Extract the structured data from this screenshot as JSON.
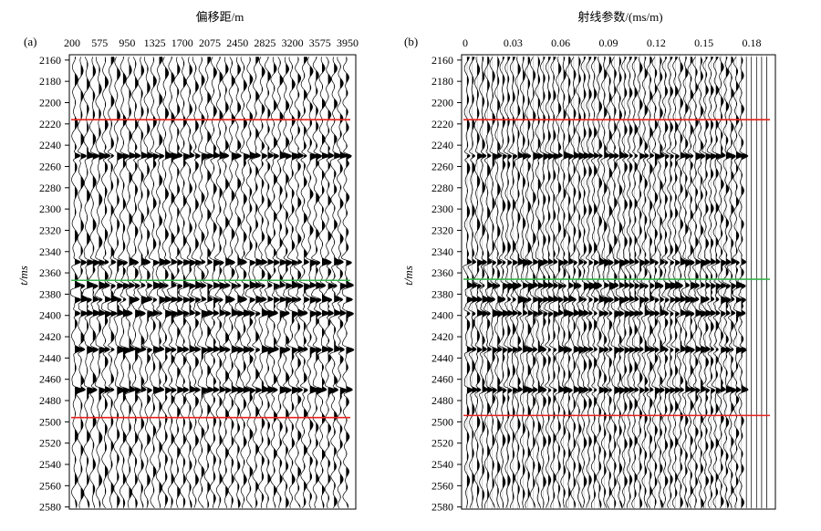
{
  "figure": {
    "panels": [
      {
        "id": "a",
        "label": "(a)",
        "top_axis_title": "偏移距/m",
        "y_axis_title": "t/ms"
      },
      {
        "id": "b",
        "label": "(b)",
        "top_axis_title": "射线参数/(ms/m)",
        "y_axis_title": "t/ms"
      }
    ]
  },
  "chart_data": [
    {
      "type": "seismic_wiggle",
      "panel": "a",
      "title": "",
      "xlabel": "偏移距/m",
      "ylabel": "t/ms",
      "x_ticks": [
        "200",
        "575",
        "950",
        "1325",
        "1700",
        "2075",
        "2450",
        "2825",
        "3200",
        "3575",
        "3950"
      ],
      "x_range": [
        200,
        3950
      ],
      "y_ticks": [
        "2160",
        "2180",
        "2200",
        "2220",
        "2240",
        "2260",
        "2280",
        "2300",
        "2320",
        "2340",
        "2360",
        "2380",
        "2400",
        "2420",
        "2440",
        "2460",
        "2480",
        "2500",
        "2520",
        "2540",
        "2560",
        "2580"
      ],
      "y_range": [
        2155,
        2582
      ],
      "y_inverted": true,
      "trace_count": 46,
      "horizon_lines": [
        {
          "t": 2216,
          "color": "#e8231b"
        },
        {
          "t": 2367,
          "color": "#39b54a"
        },
        {
          "t": 2496,
          "color": "#e8231b"
        }
      ],
      "strong_events_ms": [
        2250,
        2350,
        2372,
        2385,
        2398,
        2432,
        2470
      ]
    },
    {
      "type": "seismic_wiggle",
      "panel": "b",
      "title": "",
      "xlabel": "射线参数/(ms/m)",
      "ylabel": "t/ms",
      "x_ticks": [
        "0",
        "0.03",
        "0.06",
        "0.09",
        "0.12",
        "0.15",
        "0.18"
      ],
      "x_range": [
        0,
        0.19
      ],
      "y_ticks": [
        "2160",
        "2180",
        "2200",
        "2220",
        "2240",
        "2260",
        "2280",
        "2300",
        "2320",
        "2340",
        "2360",
        "2380",
        "2400",
        "2420",
        "2440",
        "2460",
        "2480",
        "2500",
        "2520",
        "2540",
        "2560",
        "2580"
      ],
      "y_range": [
        2155,
        2582
      ],
      "y_inverted": true,
      "trace_count": 60,
      "horizon_lines": [
        {
          "t": 2216,
          "color": "#e8231b"
        },
        {
          "t": 2366,
          "color": "#39b54a"
        },
        {
          "t": 2494,
          "color": "#e8231b"
        }
      ],
      "strong_events_ms": [
        2250,
        2350,
        2372,
        2385,
        2398,
        2432,
        2470
      ]
    }
  ]
}
